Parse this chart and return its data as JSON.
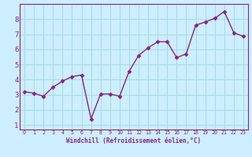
{
  "x": [
    0,
    1,
    2,
    3,
    4,
    5,
    6,
    7,
    8,
    9,
    10,
    11,
    12,
    13,
    14,
    15,
    16,
    17,
    18,
    19,
    20,
    21,
    22,
    23
  ],
  "y": [
    3.2,
    3.1,
    2.9,
    3.5,
    3.9,
    4.2,
    4.3,
    1.4,
    3.05,
    3.05,
    2.9,
    4.55,
    5.6,
    6.1,
    6.5,
    6.5,
    5.45,
    5.7,
    7.6,
    7.8,
    8.05,
    8.5,
    7.1,
    6.85
  ],
  "xlabel": "Windchill (Refroidissement éolien,°C)",
  "line_color": "#882288",
  "marker": "D",
  "marker_size": 2.5,
  "bg_color": "#cceeff",
  "grid_color": "#aadddd",
  "ylim": [
    0.7,
    9.0
  ],
  "xlim": [
    -0.5,
    23.5
  ],
  "yticks": [
    1,
    2,
    3,
    4,
    5,
    6,
    7,
    8
  ],
  "xticks": [
    0,
    1,
    2,
    3,
    4,
    5,
    6,
    7,
    8,
    9,
    10,
    11,
    12,
    13,
    14,
    15,
    16,
    17,
    18,
    19,
    20,
    21,
    22,
    23
  ],
  "xtick_labels": [
    "0",
    "1",
    "2",
    "3",
    "4",
    "5",
    "6",
    "7",
    "8",
    "9",
    "10",
    "11",
    "12",
    "13",
    "14",
    "15",
    "16",
    "17",
    "18",
    "19",
    "20",
    "21",
    "22",
    "23"
  ],
  "tick_color": "#882288",
  "label_color": "#882288",
  "axis_color": "#882288"
}
